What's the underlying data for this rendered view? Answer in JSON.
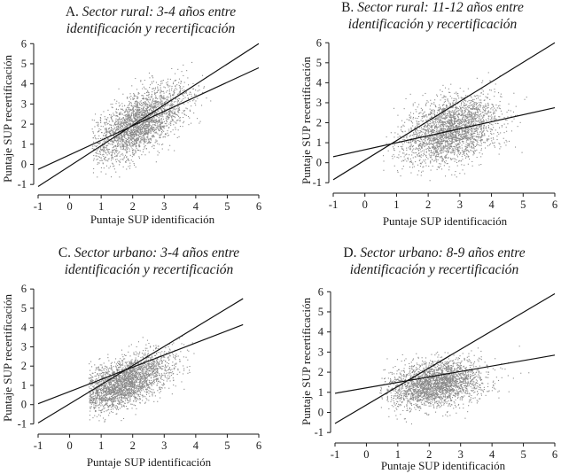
{
  "chart_data": [
    {
      "type": "scatter",
      "title_prefix": "A. ",
      "title_italic": "Sector rural: 3-4 años entre",
      "title_line2": "identificación y recertificación",
      "xlabel": "Puntaje SUP identificación",
      "ylabel": "Puntaje SUP recertificación",
      "xlim": [
        -1,
        6
      ],
      "ylim": [
        -1.3,
        6.1
      ],
      "xticks": [
        -1,
        0,
        1,
        2,
        3,
        4,
        5,
        6
      ],
      "yticks": [
        -1,
        0,
        1,
        2,
        3,
        4,
        5,
        6
      ],
      "cloud": {
        "x_range": [
          0.7,
          4.5
        ],
        "x_center": 2.2,
        "mean_intercept": 0.3,
        "mean_slope": 0.8,
        "spread": 0.7
      },
      "lines": [
        {
          "name": "línea de 45 grados",
          "x": [
            -1,
            6
          ],
          "y": [
            -1.1,
            6.0
          ]
        },
        {
          "name": "ajuste",
          "x": [
            -1,
            6
          ],
          "y": [
            -0.25,
            4.8
          ]
        }
      ]
    },
    {
      "type": "scatter",
      "title_prefix": "B. ",
      "title_italic": "Sector rural: 11-12 años entre",
      "title_line2": "identificación y recertificación",
      "xlabel": "Puntaje SUP identificación",
      "ylabel": "Puntaje SUP recertificación",
      "xlim": [
        -1,
        6
      ],
      "ylim": [
        -1.3,
        6.1
      ],
      "xticks": [
        -1,
        0,
        1,
        2,
        3,
        4,
        5,
        6
      ],
      "yticks": [
        -1,
        0,
        1,
        2,
        3,
        4,
        5,
        6
      ],
      "cloud": {
        "x_range": [
          0.5,
          6.0
        ],
        "x_center": 2.7,
        "mean_intercept": 0.6,
        "mean_slope": 0.38,
        "spread": 0.8
      },
      "lines": [
        {
          "name": "línea de 45 grados",
          "x": [
            -1,
            6
          ],
          "y": [
            -0.85,
            6.0
          ]
        },
        {
          "name": "ajuste",
          "x": [
            -1,
            6
          ],
          "y": [
            0.3,
            2.75
          ]
        }
      ]
    },
    {
      "type": "scatter",
      "title_prefix": "C. ",
      "title_italic": "Sector urbano: 3-4 años entre",
      "title_line2": "identificación y recertificación",
      "xlabel": "Puntaje SUP identificación",
      "ylabel": "Puntaje SUP recertificación",
      "xlim": [
        -1,
        6
      ],
      "ylim": [
        -1.3,
        6.1
      ],
      "xticks": [
        -1,
        0,
        1,
        2,
        3,
        4,
        5,
        6
      ],
      "yticks": [
        -1,
        0,
        1,
        2,
        3,
        4,
        5,
        6
      ],
      "cloud": {
        "x_range": [
          0.6,
          4.0
        ],
        "x_center": 1.7,
        "mean_intercept": 0.15,
        "mean_slope": 0.6,
        "spread": 0.6
      },
      "lines": [
        {
          "name": "línea de 45 grados",
          "x": [
            -1,
            5.5
          ],
          "y": [
            -0.95,
            5.5
          ]
        },
        {
          "name": "ajuste",
          "x": [
            -1,
            5.5
          ],
          "y": [
            0.05,
            4.15
          ]
        }
      ]
    },
    {
      "type": "scatter",
      "title_prefix": "D. ",
      "title_italic": "Sector urbano: 8-9 años entre",
      "title_line2": "identificación y recertificación",
      "xlabel": "Puntaje SUP identificación",
      "ylabel": "Puntaje SUP recertificación",
      "xlim": [
        -1,
        6
      ],
      "ylim": [
        -1.3,
        6.1
      ],
      "xticks": [
        -1,
        0,
        1,
        2,
        3,
        4,
        5,
        6
      ],
      "yticks": [
        -1,
        0,
        1,
        2,
        3,
        4,
        5,
        6
      ],
      "cloud": {
        "x_range": [
          0.4,
          5.5
        ],
        "x_center": 2.2,
        "mean_intercept": 1.0,
        "mean_slope": 0.2,
        "spread": 0.55
      },
      "lines": [
        {
          "name": "línea de 45 grados",
          "x": [
            -1,
            6
          ],
          "y": [
            -0.55,
            5.9
          ]
        },
        {
          "name": "ajuste",
          "x": [
            -1,
            6
          ],
          "y": [
            0.95,
            2.85
          ]
        }
      ]
    }
  ]
}
